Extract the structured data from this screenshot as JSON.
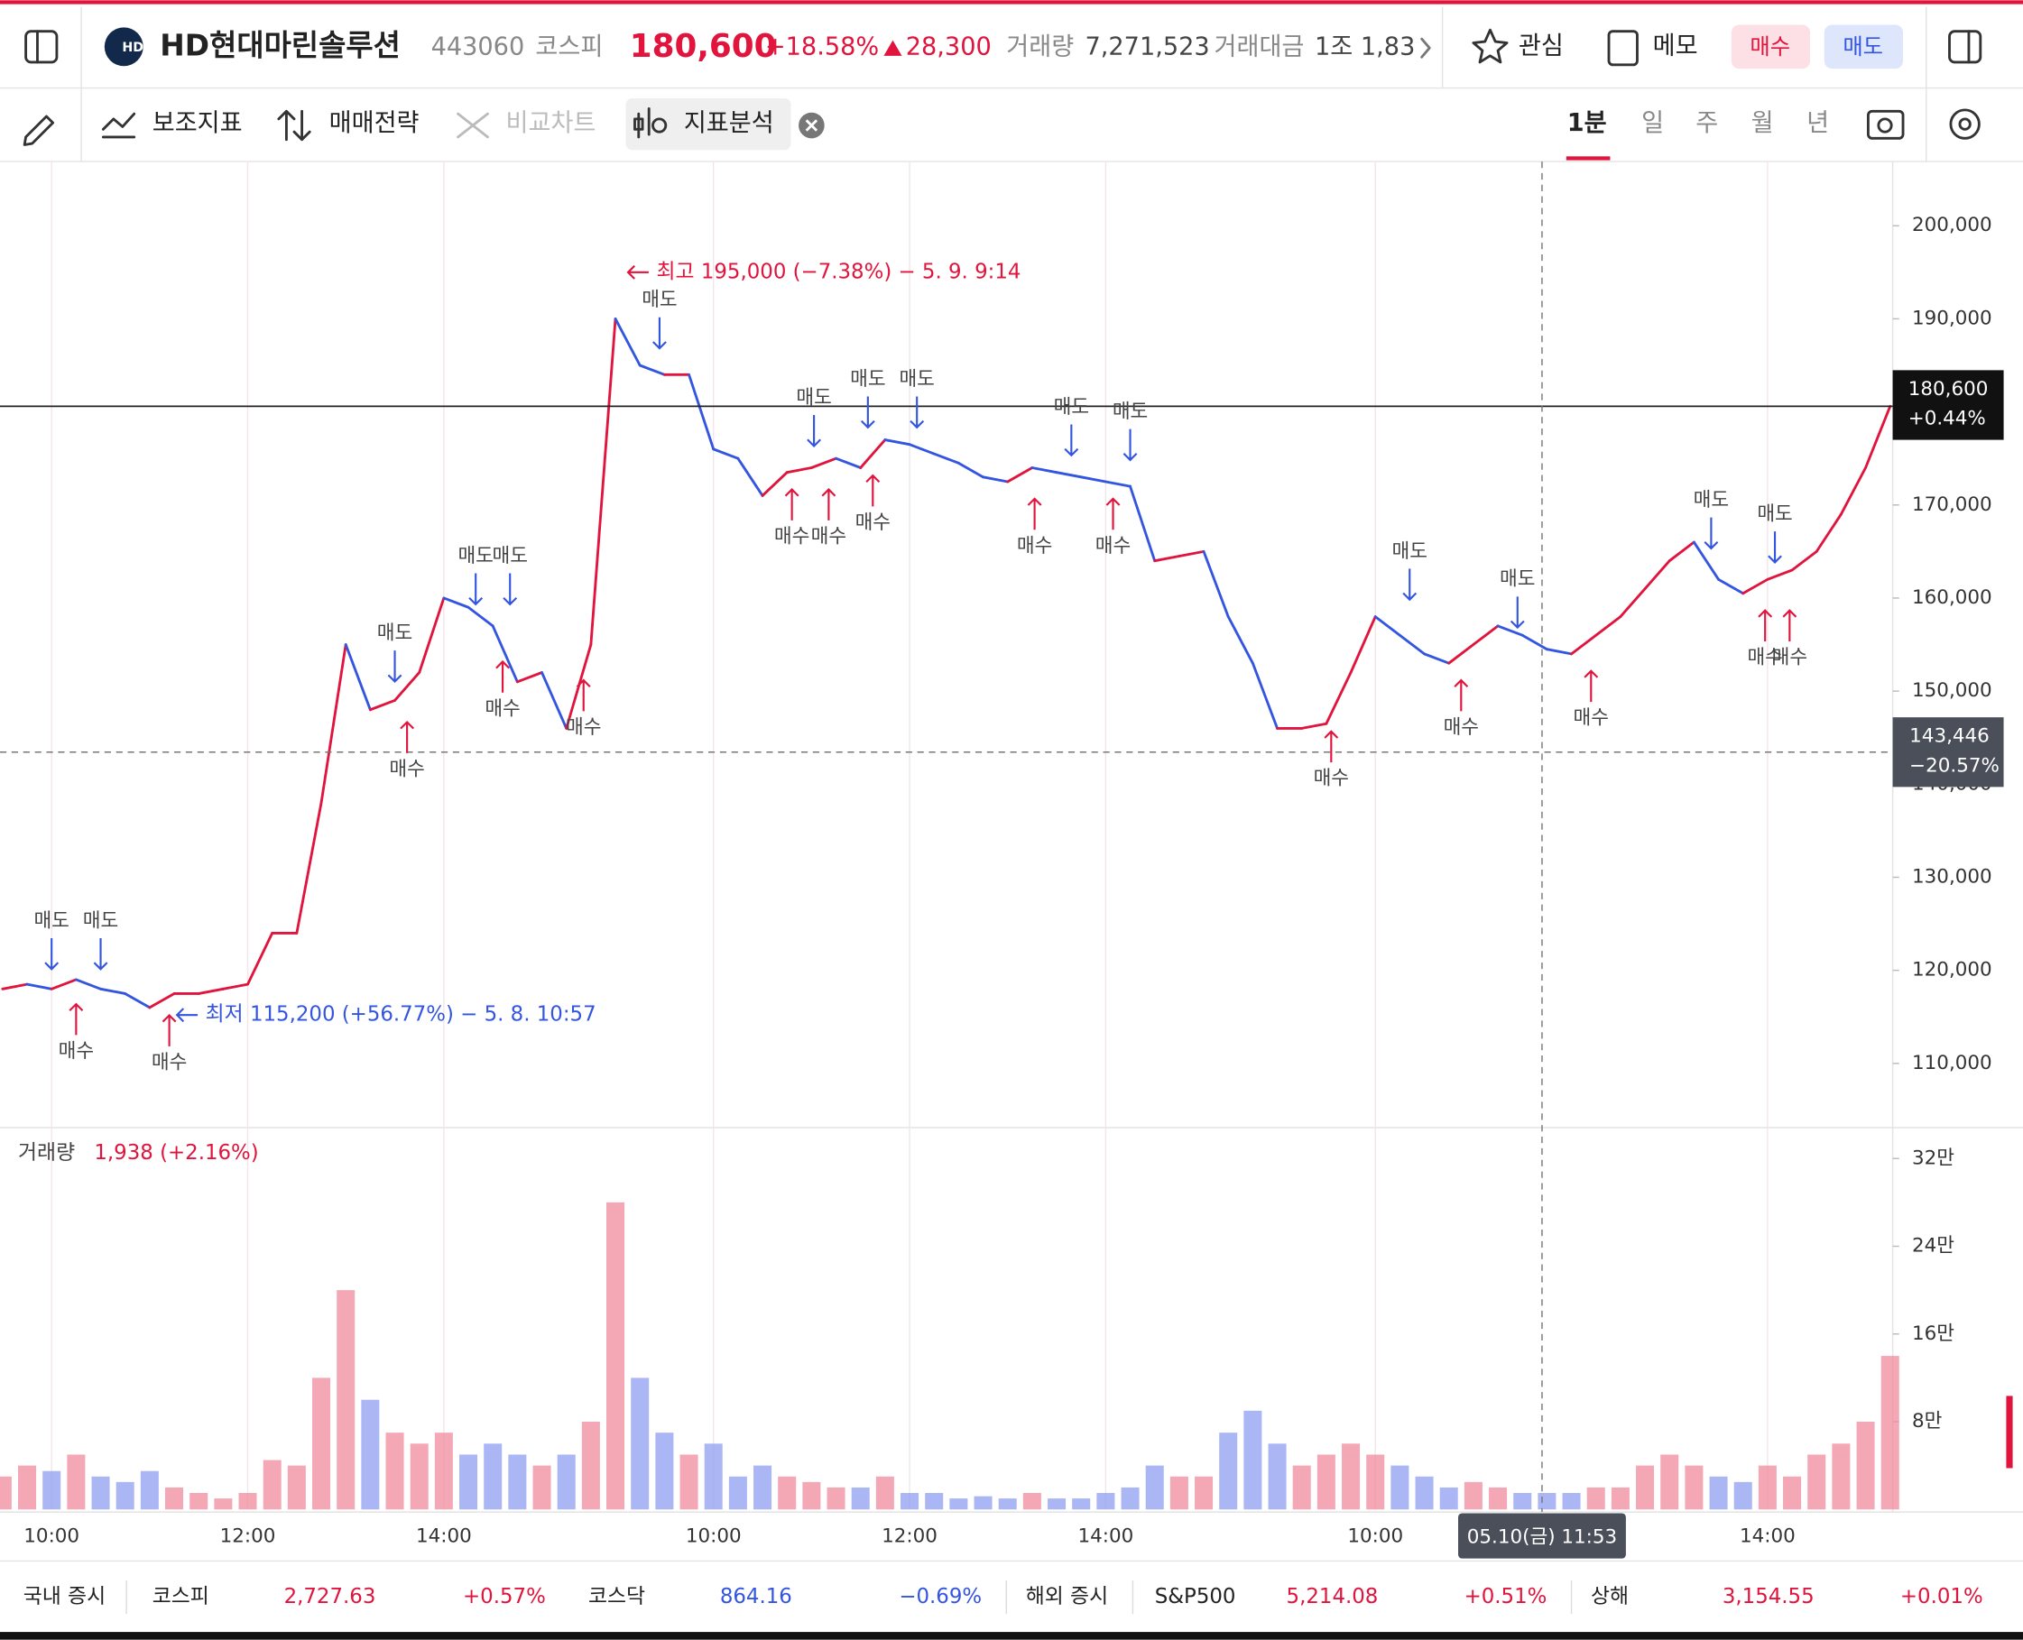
{
  "header": {
    "logo": "HD",
    "name": "HD현대마린솔루션",
    "code": "443060",
    "market": "코스피",
    "price": "180,600",
    "change_pct": "+18.58%",
    "change": "28,300",
    "volume_label": "거래량",
    "volume": "7,271,523",
    "amount_label": "거래대금",
    "amount": "1조 1,83",
    "buttons": [
      "관심",
      "메모",
      "매수",
      "매도"
    ]
  },
  "toolbar": {
    "tools": [
      "보조지표",
      "매매전략",
      "비교차트",
      "지표분석"
    ],
    "periods": [
      "1분",
      "일",
      "주",
      "월",
      "년"
    ]
  },
  "chart_data": [
    {
      "type": "line",
      "categories": [
        null,
        null,
        "10:00",
        null,
        null,
        null,
        null,
        null,
        null,
        null,
        "12:00",
        null,
        null,
        null,
        null,
        null,
        null,
        null,
        "14:00",
        null,
        null,
        null,
        null,
        null,
        null,
        null,
        null,
        null,
        null,
        "10:00",
        null,
        null,
        null,
        null,
        null,
        null,
        null,
        "12:00",
        null,
        null,
        null,
        null,
        null,
        null,
        null,
        "14:00",
        null,
        null,
        null,
        null,
        null,
        null,
        null,
        null,
        null,
        null,
        "10:00",
        null,
        null,
        null,
        null,
        null,
        null,
        null,
        null,
        null,
        null,
        null,
        null,
        null,
        null,
        null,
        "14:00",
        null,
        null,
        null,
        null,
        null
      ],
      "values": [
        118000,
        118500,
        118000,
        119000,
        118000,
        117500,
        116000,
        117500,
        117500,
        118000,
        118500,
        124000,
        124000,
        138000,
        155000,
        148000,
        149000,
        152000,
        160000,
        159000,
        157000,
        151000,
        152000,
        146000,
        155000,
        190000,
        185000,
        184000,
        184000,
        176000,
        175000,
        171000,
        173500,
        174000,
        175000,
        174000,
        177000,
        176500,
        175500,
        174500,
        173000,
        172500,
        174000,
        173500,
        173000,
        172500,
        172000,
        164000,
        164500,
        165000,
        158000,
        153000,
        146000,
        146000,
        146500,
        152000,
        158000,
        156000,
        154000,
        153000,
        155000,
        157000,
        156000,
        154500,
        154000,
        156000,
        158000,
        161000,
        164000,
        166000,
        162000,
        160500,
        162000,
        163000,
        165000,
        169000,
        174000,
        180600
      ],
      "colors": {
        "up": "#e0143c",
        "down": "#3355e0"
      },
      "ylim": [
        103100,
        206900
      ],
      "yticks": [
        {
          "value": 110000,
          "label": "110,000"
        },
        {
          "value": 120000,
          "label": "120,000"
        },
        {
          "value": 130000,
          "label": "130,000"
        },
        {
          "value": 140000,
          "label": "140,000"
        },
        {
          "value": 150000,
          "label": "150,000"
        },
        {
          "value": 160000,
          "label": "160,000"
        },
        {
          "value": 170000,
          "label": "170,000"
        },
        {
          "value": 180000,
          "label": "180,000"
        },
        {
          "value": 190000,
          "label": "190,000"
        },
        {
          "value": 200000,
          "label": "200,000"
        }
      ],
      "annotations": [
        {
          "text": "최고 195,000 (−7.38%) − 5. 9. 9:14",
          "x": 25.2,
          "y": 195000,
          "color": "#e0143c"
        },
        {
          "text": "최저 115,200 (+56.77%) − 5. 8. 10:57",
          "x": 6.8,
          "y": 115200,
          "color": "#3355e0"
        }
      ],
      "signals": [
        {
          "label": "매도",
          "x": 2.0,
          "y": 119300
        },
        {
          "label": "매도",
          "x": 4.0,
          "y": 119300
        },
        {
          "label": "매수",
          "x": 3.0,
          "y": 117200
        },
        {
          "label": "매수",
          "x": 6.8,
          "y": 116000
        },
        {
          "label": "매도",
          "x": 16.0,
          "y": 150200
        },
        {
          "label": "매수",
          "x": 16.5,
          "y": 147500
        },
        {
          "label": "매도",
          "x": 19.3,
          "y": 158500
        },
        {
          "label": "매도",
          "x": 20.7,
          "y": 158500
        },
        {
          "label": "매수",
          "x": 20.4,
          "y": 154000
        },
        {
          "label": "매수",
          "x": 23.7,
          "y": 152000
        },
        {
          "label": "매도",
          "x": 26.8,
          "y": 186000
        },
        {
          "label": "매도",
          "x": 33.1,
          "y": 175500
        },
        {
          "label": "매수",
          "x": 32.2,
          "y": 172500
        },
        {
          "label": "매수",
          "x": 33.7,
          "y": 172500
        },
        {
          "label": "매도",
          "x": 35.3,
          "y": 177500
        },
        {
          "label": "매도",
          "x": 37.3,
          "y": 177500
        },
        {
          "label": "매수",
          "x": 35.5,
          "y": 174000
        },
        {
          "label": "매도",
          "x": 43.6,
          "y": 174500
        },
        {
          "label": "매도",
          "x": 46.0,
          "y": 174000
        },
        {
          "label": "매수",
          "x": 42.1,
          "y": 171500
        },
        {
          "label": "매수",
          "x": 45.3,
          "y": 171500
        },
        {
          "label": "매수",
          "x": 54.2,
          "y": 146500
        },
        {
          "label": "매도",
          "x": 57.4,
          "y": 159000
        },
        {
          "label": "매수",
          "x": 59.5,
          "y": 152000
        },
        {
          "label": "매도",
          "x": 61.8,
          "y": 156000
        },
        {
          "label": "매수",
          "x": 64.8,
          "y": 153000
        },
        {
          "label": "매도",
          "x": 69.7,
          "y": 164500
        },
        {
          "label": "매도",
          "x": 72.3,
          "y": 163000
        },
        {
          "label": "매수",
          "x": 71.9,
          "y": 159500
        },
        {
          "label": "매수",
          "x": 72.9,
          "y": 159500
        }
      ],
      "last_price": {
        "value": 180600,
        "label": "180,600",
        "change": "+0.44%"
      },
      "crosshair": {
        "value": 143446,
        "label": "143,446",
        "change": "−20.57%",
        "x": 62.8,
        "time": "05.10(금) 11:53"
      }
    },
    {
      "type": "bar",
      "title": "거래량",
      "current": "1,938 (+2.16%)",
      "values": [
        30000,
        40000,
        35000,
        50000,
        30000,
        25000,
        35000,
        20000,
        15000,
        10000,
        15000,
        45000,
        40000,
        120000,
        200000,
        100000,
        70000,
        60000,
        70000,
        50000,
        60000,
        50000,
        40000,
        50000,
        80000,
        280000,
        120000,
        70000,
        50000,
        60000,
        30000,
        40000,
        30000,
        25000,
        20000,
        20000,
        30000,
        15000,
        15000,
        10000,
        12000,
        10000,
        15000,
        10000,
        10000,
        15000,
        20000,
        40000,
        30000,
        30000,
        70000,
        90000,
        60000,
        40000,
        50000,
        60000,
        50000,
        40000,
        30000,
        20000,
        25000,
        20000,
        15000,
        15000,
        15000,
        20000,
        20000,
        40000,
        50000,
        40000,
        30000,
        25000,
        40000,
        30000,
        50000,
        60000,
        80000,
        140000
      ],
      "colors": {
        "up": "#f08a9c",
        "down": "#8f9df0"
      },
      "ylim": [
        0,
        347000
      ],
      "yticks": [
        {
          "value": 80000,
          "label": "8만"
        },
        {
          "value": 160000,
          "label": "16만"
        },
        {
          "value": 240000,
          "label": "24만"
        },
        {
          "value": 320000,
          "label": "32만"
        }
      ]
    }
  ],
  "footer": {
    "domestic_label": "국내 증시",
    "overseas_label": "해외 증시",
    "indices": [
      {
        "name": "코스피",
        "value": "2,727.63",
        "change": "+0.57%",
        "color": "#e0143c"
      },
      {
        "name": "코스닥",
        "value": "864.16",
        "change": "−0.69%",
        "color": "#3355e0"
      },
      {
        "name": "S&P500",
        "value": "5,214.08",
        "change": "+0.51%",
        "color": "#e0143c"
      },
      {
        "name": "상해",
        "value": "3,154.55",
        "change": "+0.01%",
        "color": "#e0143c"
      }
    ]
  }
}
